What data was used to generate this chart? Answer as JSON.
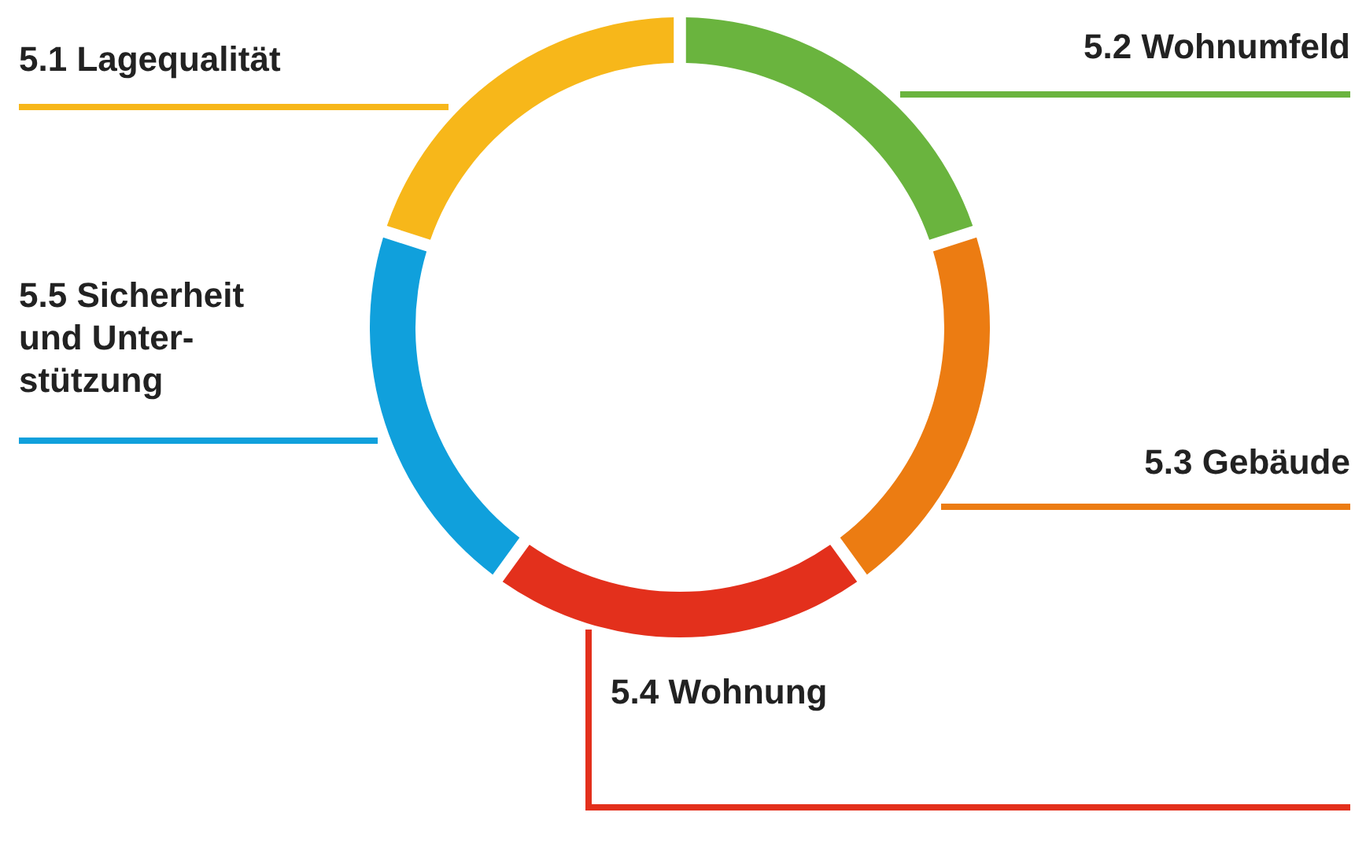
{
  "chart_data": {
    "type": "donut",
    "categories": [
      "5.2 Wohnumfeld",
      "5.3 Gebäude",
      "5.4 Wohnung",
      "5.5 Sicherheit und Unter-stützung",
      "5.1 Lagequalität"
    ],
    "values": [
      20,
      20,
      20,
      20,
      20
    ],
    "colors": [
      "#6ab43e",
      "#ec7c12",
      "#e3301c",
      "#10a0dc",
      "#f7b71a"
    ]
  }
}
